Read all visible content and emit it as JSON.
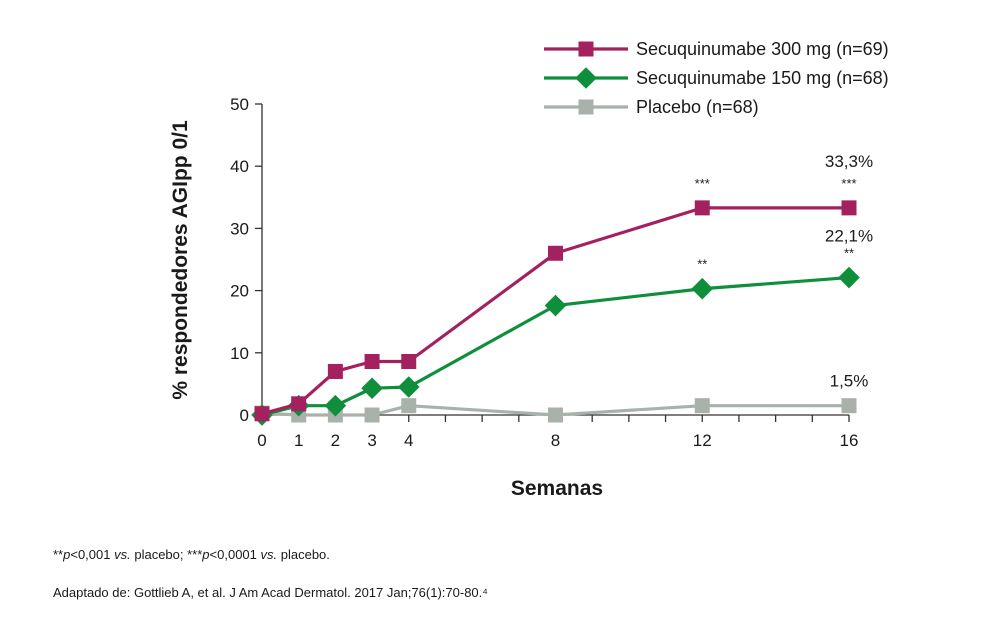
{
  "chart_data": {
    "type": "line",
    "ylabel": "% respondedores AGIpp 0/1",
    "xlabel": "Semanas",
    "ylim": [
      0,
      50
    ],
    "yticks": [
      0,
      10,
      20,
      30,
      40,
      50
    ],
    "xticks": [
      0,
      1,
      2,
      3,
      4,
      8,
      12,
      16
    ],
    "xlim": [
      0,
      16
    ],
    "grid": false,
    "legend_position": "top-right",
    "series": [
      {
        "name": "Secuquinumabe 300 mg  (n=69)",
        "color": "#a3215e",
        "marker": "square",
        "x": [
          0,
          1,
          2,
          3,
          4,
          8,
          12,
          16
        ],
        "y": [
          0.2,
          1.8,
          7.0,
          8.6,
          8.6,
          26.0,
          33.3,
          33.3
        ]
      },
      {
        "name": "Secuquinumabe 150 mg  (n=68)",
        "color": "#0f8f3c",
        "marker": "diamond",
        "x": [
          0,
          1,
          2,
          3,
          4,
          8,
          12,
          16
        ],
        "y": [
          0.0,
          1.5,
          1.5,
          4.3,
          4.5,
          17.6,
          20.3,
          22.1
        ]
      },
      {
        "name": "Placebo  (n=68)",
        "color": "#a8b2ab",
        "marker": "square",
        "x": [
          0,
          1,
          2,
          3,
          4,
          8,
          12,
          16
        ],
        "y": [
          0.3,
          0.0,
          0.0,
          0.0,
          1.5,
          0.0,
          1.5,
          1.5
        ]
      }
    ],
    "annotations": [
      {
        "text": "33,3%",
        "x": 16,
        "y": 33.3,
        "kind": "value"
      },
      {
        "text": "22,1%",
        "x": 16,
        "y": 22.1,
        "kind": "value"
      },
      {
        "text": "1,5%",
        "x": 16,
        "y": 1.5,
        "kind": "value"
      },
      {
        "text": "***",
        "x": 12,
        "y": 33.3,
        "kind": "sig"
      },
      {
        "text": "***",
        "x": 16,
        "y": 33.3,
        "kind": "sig"
      },
      {
        "text": "**",
        "x": 12,
        "y": 20.3,
        "kind": "sig"
      },
      {
        "text": "**",
        "x": 16,
        "y": 22.1,
        "kind": "sig"
      }
    ]
  },
  "footnote": {
    "parts": [
      {
        "text": "**",
        "style": "normal"
      },
      {
        "text": "p",
        "style": "italic"
      },
      {
        "text": "<0,001 ",
        "style": "normal"
      },
      {
        "text": "vs.",
        "style": "italic"
      },
      {
        "text": " placebo; ***",
        "style": "normal"
      },
      {
        "text": "p",
        "style": "italic"
      },
      {
        "text": "<0,0001 ",
        "style": "normal"
      },
      {
        "text": "vs.",
        "style": "italic"
      },
      {
        "text": " placebo.",
        "style": "normal"
      }
    ]
  },
  "source": "Adaptado de: Gottlieb A, et al. J Am Acad Dermatol. 2017 Jan;76(1):70-80.⁴"
}
